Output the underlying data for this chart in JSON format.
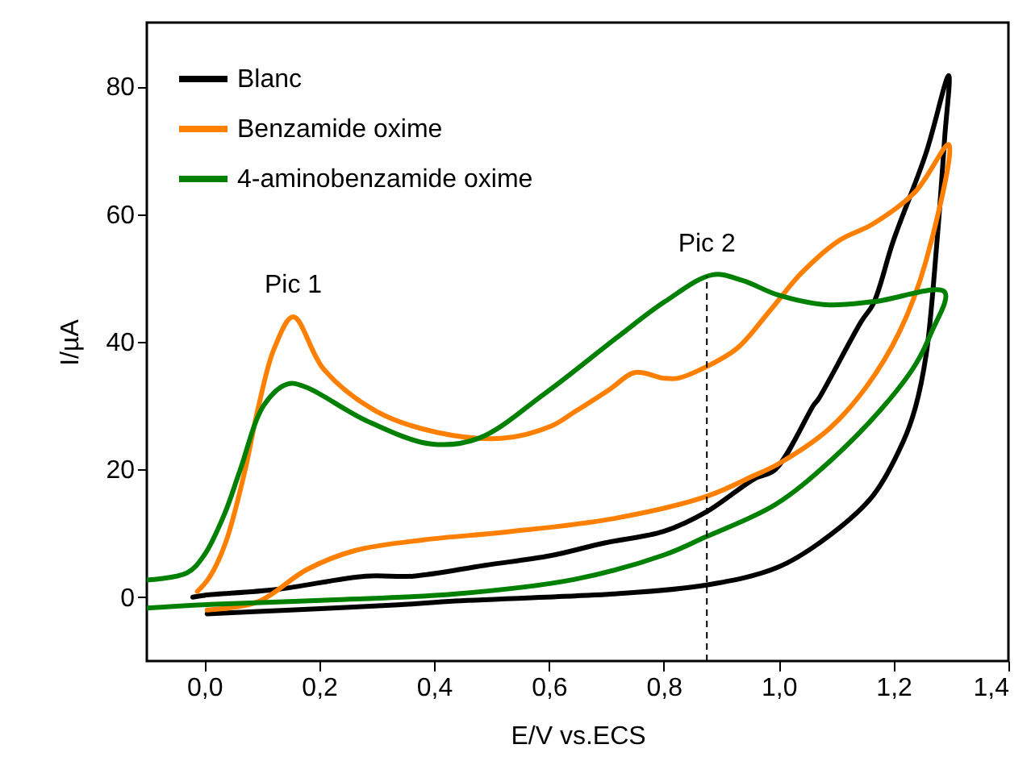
{
  "chart_data": {
    "type": "line",
    "xlabel": "E/V vs.ECS",
    "ylabel": "I/µA",
    "xlim": [
      -0.1,
      1.4
    ],
    "ylim": [
      -10,
      90
    ],
    "xticks": [
      {
        "value": 0,
        "label": "0,0"
      },
      {
        "value": 0.2,
        "label": "0,2"
      },
      {
        "value": 0.4,
        "label": "0,4"
      },
      {
        "value": 0.6,
        "label": "0,6"
      },
      {
        "value": 0.8,
        "label": "0,8"
      },
      {
        "value": 1.0,
        "label": "1,0"
      },
      {
        "value": 1.2,
        "label": "1,2"
      },
      {
        "value": 1.4,
        "label": "1,4"
      }
    ],
    "yticks": [
      0,
      20,
      40,
      60,
      80
    ],
    "grid": false,
    "legend": "top left",
    "marker": "none",
    "line_style": "solid",
    "series": [
      {
        "name": "Blanc",
        "color": "#000000",
        "x": [
          0.005,
          0.15,
          0.338,
          0.437,
          0.645,
          0.712,
          0.874,
          0.999,
          1.092,
          1.165,
          1.217,
          1.238,
          1.257,
          1.275,
          1.289,
          1.296,
          1.256,
          1.2,
          1.165,
          1.144,
          1.069,
          1.061,
          0.994,
          0.957,
          0.875,
          0.8,
          0.697,
          0.603,
          0.489,
          0.364,
          0.281,
          0.125,
          0.0,
          -0.02
        ],
        "values": [
          -2.6,
          -2.0,
          -1.2,
          -0.6,
          0.2,
          0.5,
          1.9,
          4.7,
          9.9,
          16,
          24.4,
          29.7,
          38.1,
          55,
          71.9,
          81.7,
          69.4,
          55.9,
          46,
          43.2,
          31,
          30.1,
          20,
          18.5,
          13.4,
          10.3,
          8.5,
          6.5,
          5.0,
          3.3,
          3.3,
          1.2,
          0.3,
          0
        ]
      },
      {
        "name": "Benzamide oxime",
        "color": "#ff8000",
        "x": [
          0.005,
          0.094,
          0.178,
          0.262,
          0.384,
          0.525,
          0.712,
          0.875,
          0.956,
          1.0,
          1.087,
          1.153,
          1.21,
          1.256,
          1.296,
          1.238,
          1.163,
          1.106,
          1.04,
          0.985,
          0.928,
          0.872,
          0.825,
          0.8,
          0.75,
          0.705,
          0.646,
          0.604,
          0.52,
          0.406,
          0.3,
          0.208,
          0.155,
          0.122,
          0.094,
          0.07,
          0.037,
          0.009,
          -0.012
        ],
        "values": [
          -2,
          -0.7,
          4.3,
          7.3,
          9,
          10.2,
          12.3,
          15.8,
          19,
          20.9,
          26.3,
          33,
          41.5,
          52.5,
          70.9,
          63.5,
          58.4,
          55.9,
          50.8,
          44.9,
          39,
          36,
          34.3,
          34.3,
          35.2,
          32.5,
          29.1,
          26.8,
          24.9,
          25.8,
          29.1,
          35.7,
          43.9,
          39,
          29.7,
          19.5,
          8.5,
          3.1,
          0.9
        ]
      },
      {
        "name": "4-aminobenzamide oxime",
        "color": "#008000",
        "x": [
          -0.1,
          -0.03,
          0.0,
          0.036,
          0.062,
          0.104,
          0.145,
          0.177,
          0.281,
          0.395,
          0.478,
          0.593,
          0.719,
          0.802,
          0.885,
          0.937,
          1.0,
          1.083,
          1.167,
          1.289,
          1.266,
          1.238,
          1.181,
          1.088,
          0.994,
          0.872,
          0.8,
          0.645,
          0.437,
          0.229,
          0.02,
          -0.1
        ],
        "values": [
          2.7,
          3.8,
          6.6,
          13.2,
          19.8,
          30.1,
          33.4,
          32.9,
          27.7,
          24,
          24.9,
          31.9,
          40.7,
          46.3,
          50.5,
          49.6,
          47.3,
          45.8,
          46.3,
          47.8,
          41.5,
          36.4,
          29.7,
          21.2,
          14.5,
          9.4,
          6.6,
          2.8,
          0.5,
          -0.4,
          -1.1,
          -1.7
        ]
      }
    ],
    "ref_lines": [
      {
        "axis": "x",
        "value": 0.875,
        "color": "#000000",
        "line_style": "dashed"
      }
    ],
    "annotations": [
      {
        "text": "Pic 1",
        "x": 0.155,
        "y": 43.9
      },
      {
        "text": "Pic 2",
        "x": 0.875,
        "y": 50.3
      }
    ]
  }
}
